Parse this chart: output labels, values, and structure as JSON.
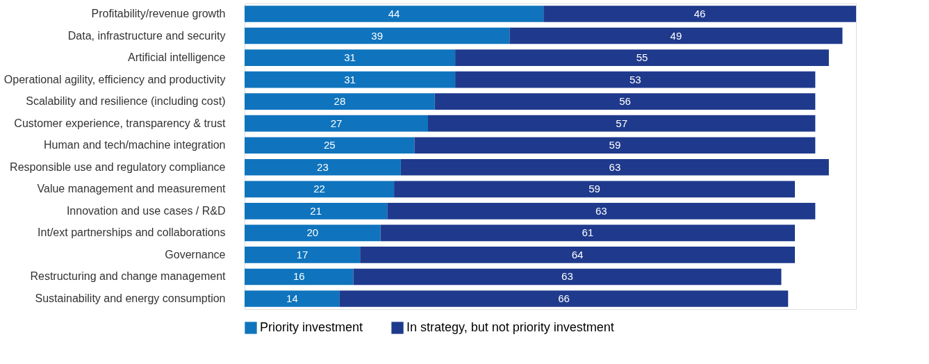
{
  "chart_data": {
    "type": "bar",
    "orientation": "horizontal",
    "stacked": true,
    "data_labels": true,
    "legend": "bottom",
    "grid": false,
    "categories": [
      "Profitability/revenue growth",
      "Data, infrastructure and security",
      "Artificial intelligence",
      "Operational agility, efficiency and productivity",
      "Scalability and resilience (including cost)",
      "Customer experience, transparency & trust",
      "Human and tech/machine integration",
      "Responsible use and regulatory compliance",
      "Value management and measurement",
      "Innovation and use cases / R&D",
      "Int/ext partnerships and collaborations",
      "Governance",
      "Restructuring and change management",
      "Sustainability and energy consumption"
    ],
    "series": [
      {
        "name": "Priority investment",
        "color": "#0f74bd",
        "values": [
          44,
          39,
          31,
          31,
          28,
          27,
          25,
          23,
          22,
          21,
          20,
          17,
          16,
          14
        ]
      },
      {
        "name": "In strategy, but not priority investment",
        "color": "#1f3a8c",
        "values": [
          46,
          49,
          55,
          53,
          56,
          57,
          59,
          63,
          59,
          63,
          61,
          64,
          63,
          66
        ]
      }
    ]
  }
}
